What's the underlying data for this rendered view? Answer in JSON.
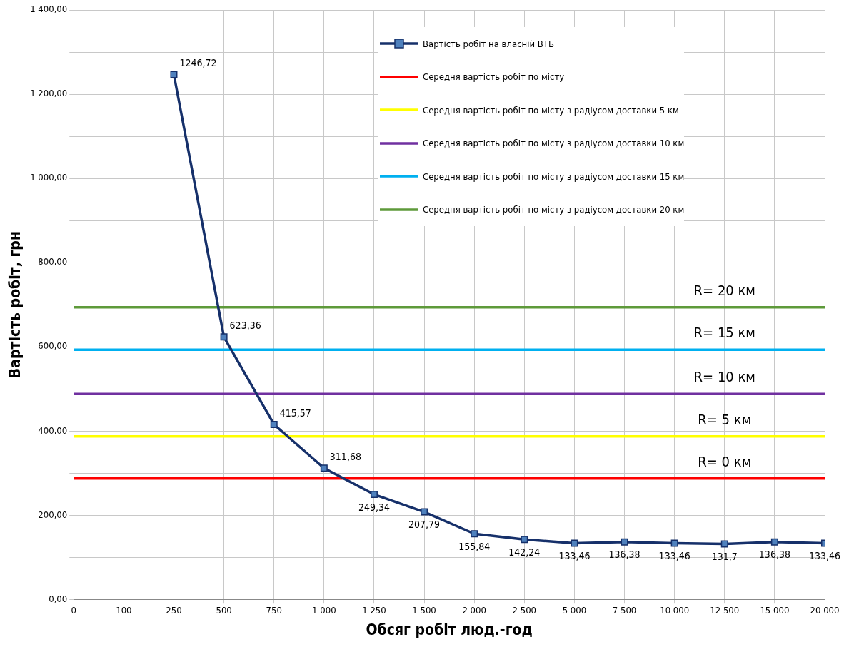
{
  "chart_data": {
    "type": "line",
    "xlabel": "Обсяг робіт люд.-год",
    "ylabel": "Вартість робіт, грн",
    "categories": [
      "0",
      "100",
      "250",
      "500",
      "750",
      "1 000",
      "1 250",
      "1 500",
      "2 000",
      "2 500",
      "5 000",
      "7 500",
      "10 000",
      "12 500",
      "15 000",
      "20 000"
    ],
    "series": [
      {
        "name": "Вартість робіт на власній ВТБ",
        "color": "#16306a",
        "marker": "square",
        "values": [
          null,
          null,
          1246.72,
          623.36,
          415.57,
          311.68,
          249.34,
          207.79,
          155.84,
          142.24,
          133.46,
          136.38,
          133.46,
          131.7,
          136.38,
          133.46
        ],
        "value_labels": [
          null,
          null,
          "1246,72",
          "623,36",
          "415,57",
          "311,68",
          "249,34",
          "207,79",
          "155,84",
          "142,24",
          "133,46",
          "136,38",
          "133,46",
          "131,7",
          "136,38",
          "133,46"
        ]
      },
      {
        "name": "Середня вартість робіт по місту",
        "color": "#ff0000",
        "marker": "none",
        "values": [
          287,
          287,
          287,
          287,
          287,
          287,
          287,
          287,
          287,
          287,
          287,
          287,
          287,
          287,
          287,
          287
        ]
      },
      {
        "name": "Середня вартість робіт по місту з радіусом доставки 5  км",
        "color": "#ffff00",
        "marker": "none",
        "values": [
          387,
          387,
          387,
          387,
          387,
          387,
          387,
          387,
          387,
          387,
          387,
          387,
          387,
          387,
          387,
          387
        ]
      },
      {
        "name": "Середня вартість робіт по місту з радіусом доставки 10  км",
        "color": "#7030a0",
        "marker": "none",
        "values": [
          488,
          488,
          488,
          488,
          488,
          488,
          488,
          488,
          488,
          488,
          488,
          488,
          488,
          488,
          488,
          488
        ]
      },
      {
        "name": "Середня вартість робіт по місту з радіусом доставки 15  км",
        "color": "#00b0f0",
        "marker": "none",
        "values": [
          593,
          593,
          593,
          593,
          593,
          593,
          593,
          593,
          593,
          593,
          593,
          593,
          593,
          593,
          593,
          593
        ]
      },
      {
        "name": "Середня вартість робіт по місту з радіусом доставки 20  км",
        "color": "#5e9a3a",
        "marker": "none",
        "values": [
          694,
          694,
          694,
          694,
          694,
          694,
          694,
          694,
          694,
          694,
          694,
          694,
          694,
          694,
          694,
          694
        ]
      }
    ],
    "ylim": [
      0,
      1400
    ],
    "yticks": [
      {
        "value": 0,
        "label": "0,00"
      },
      {
        "value": 100,
        "label": null
      },
      {
        "value": 200,
        "label": "200,00"
      },
      {
        "value": 300,
        "label": null
      },
      {
        "value": 400,
        "label": "400,00"
      },
      {
        "value": 500,
        "label": null
      },
      {
        "value": 600,
        "label": "600,00"
      },
      {
        "value": 700,
        "label": null
      },
      {
        "value": 800,
        "label": "800,00"
      },
      {
        "value": 900,
        "label": null
      },
      {
        "value": 1000,
        "label": "1 000,00"
      },
      {
        "value": 1100,
        "label": null
      },
      {
        "value": 1200,
        "label": "1 200,00"
      },
      {
        "value": 1300,
        "label": null
      },
      {
        "value": 1400,
        "label": "1 400,00"
      }
    ],
    "annotations": [
      {
        "text": "R= 20 км",
        "x": "12 500",
        "y": 694
      },
      {
        "text": "R= 15 км",
        "x": "12 500",
        "y": 593
      },
      {
        "text": "R= 10 км",
        "x": "12 500",
        "y": 488
      },
      {
        "text": "R= 5 км",
        "x": "12 500",
        "y": 387
      },
      {
        "text": "R= 0 км",
        "x": "12 500",
        "y": 287
      }
    ],
    "grid": true,
    "legend": "top right",
    "line_style": "solid"
  }
}
